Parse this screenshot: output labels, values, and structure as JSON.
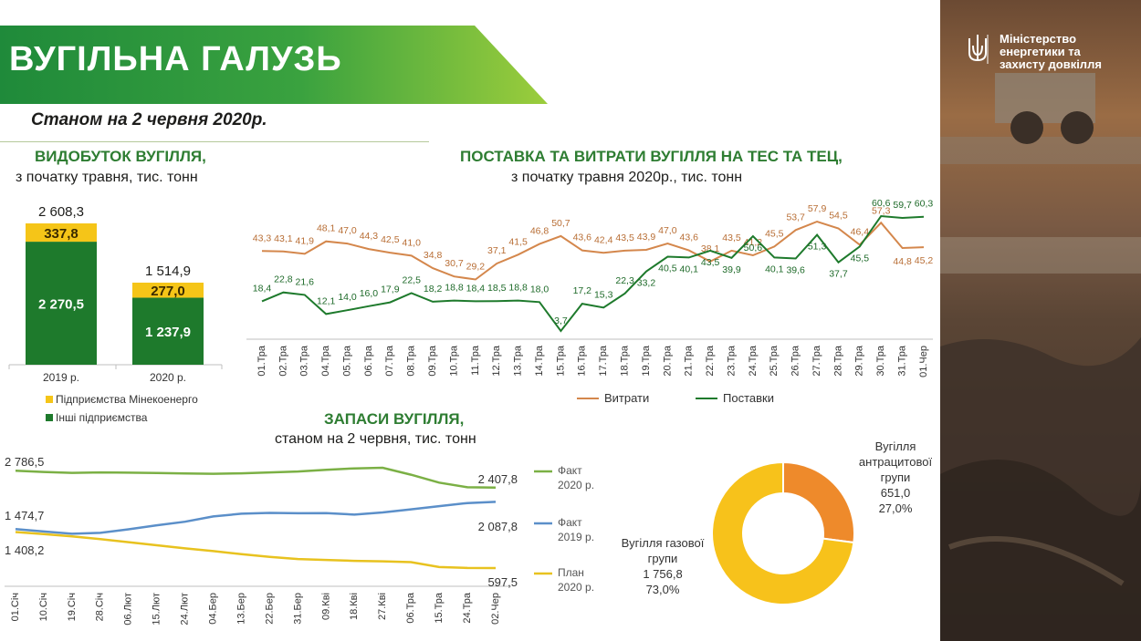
{
  "header": {
    "title": "ВУГІЛЬНА ГАЛУЗЬ",
    "date": "Станом на 2 червня 2020р."
  },
  "ministry": {
    "line1": "Міністерство",
    "line2": "енергетики та",
    "line3": "захисту довкілля"
  },
  "colors": {
    "green_dark": "#1e7a2c",
    "green_title": "#2e7d32",
    "yellow": "#f5c518",
    "orange": "#d4874c",
    "plan_yellow": "#e8c21f",
    "fact2020_green": "#7bb045",
    "fact2019_blue": "#5b8fc9",
    "donut_orange": "#ee8a2b",
    "donut_yellow": "#f7c21b"
  },
  "production": {
    "title": "ВИДОБУТОК ВУГІЛЛЯ,",
    "subtitle": "з початку травня, тис. тонн"
  },
  "supply": {
    "title": "ПОСТАВКА ТА ВИТРАТИ ВУГІЛЛЯ НА ТЕС ТА ТЕЦ,",
    "subtitle": "з початку травня 2020р., тис. тонн"
  },
  "stocks": {
    "title": "ЗАПАСИ ВУГІЛЛЯ,",
    "subtitle": "станом на 2 червня, тис. тонн"
  },
  "chart_data": [
    {
      "type": "bar",
      "stacked": true,
      "categories": [
        "2019 р.",
        "2020 р."
      ],
      "series": [
        {
          "name": "Інші підприємства",
          "values": [
            2270.5,
            1237.9
          ],
          "labels": [
            "2 270,5",
            "1 237,9"
          ]
        },
        {
          "name": "Підприємства Мінекоенерго",
          "values": [
            337.8,
            277.0
          ],
          "labels": [
            "337,8",
            "277,0"
          ]
        }
      ],
      "totals": [
        2608.3,
        1514.9
      ],
      "total_labels": [
        "2 608,3",
        "1 514,9"
      ],
      "legend_position": "bottom"
    },
    {
      "type": "line",
      "x": [
        "01.Тра",
        "02.Тра",
        "03.Тра",
        "04.Тра",
        "05.Тра",
        "06.Тра",
        "07.Тра",
        "08.Тра",
        "09.Тра",
        "10.Тра",
        "11.Тра",
        "12.Тра",
        "13.Тра",
        "14.Тра",
        "15.Тра",
        "16.Тра",
        "17.Тра",
        "18.Тра",
        "19.Тра",
        "20.Тра",
        "21.Тра",
        "22.Тра",
        "23.Тра",
        "24.Тра",
        "25.Тра",
        "26.Тра",
        "27.Тра",
        "28.Тра",
        "29.Тра",
        "30.Тра",
        "31.Тра",
        "01.Чер"
      ],
      "series": [
        {
          "name": "Витрати",
          "values": [
            43.3,
            43.1,
            41.9,
            48.1,
            47.0,
            44.3,
            42.5,
            41.0,
            34.8,
            30.7,
            29.2,
            37.1,
            41.5,
            46.8,
            50.7,
            43.6,
            42.4,
            43.5,
            43.9,
            47.0,
            43.6,
            38.1,
            43.5,
            41.2,
            45.5,
            53.7,
            57.9,
            54.5,
            46.4,
            57.3,
            44.8,
            45.2
          ],
          "labels": [
            "43,3",
            "43,1",
            "41,9",
            "48,1",
            "47,0",
            "44,3",
            "42,5",
            "41,0",
            "34,8",
            "30,7",
            "29,2",
            "37,1",
            "41,5",
            "46,8",
            "50,7",
            "43,6",
            "42,4",
            "43,5",
            "43,9",
            "47,0",
            "43,6",
            "38,1",
            "43,5",
            "41,2",
            "45,5",
            "53,7",
            "57,9",
            "54,5",
            "46,4",
            "57,3",
            "44,8",
            "45,2"
          ]
        },
        {
          "name": "Поставки",
          "values": [
            18.4,
            22.8,
            21.6,
            12.1,
            14.0,
            16.0,
            17.9,
            22.5,
            18.2,
            18.8,
            18.4,
            18.5,
            18.8,
            18.0,
            3.7,
            17.2,
            15.3,
            22.3,
            33.2,
            40.5,
            40.1,
            43.5,
            39.9,
            50.6,
            40.1,
            39.6,
            51.3,
            37.7,
            45.5,
            60.6,
            59.7,
            60.3
          ],
          "labels": [
            "18,4",
            "22,8",
            "21,6",
            "12,1",
            "14,0",
            "16,0",
            "17,9",
            "22,5",
            "18,2",
            "18,8",
            "18,4",
            "18,5",
            "18,8",
            "18,0",
            "3,7",
            "17,2",
            "15,3",
            "22,3",
            "33,2",
            "40,5",
            "40,1",
            "43,5",
            "39,9",
            "50,6",
            "40,1",
            "39,6",
            "51,3",
            "37,7",
            "45,5",
            "60,6",
            "59,7",
            "60,3"
          ]
        }
      ],
      "legend_position": "bottom"
    },
    {
      "type": "line",
      "x_ticks": [
        "01.Січ",
        "10.Січ",
        "19.Січ",
        "28.Січ",
        "06.Лют",
        "15.Лют",
        "24.Лют",
        "04.Бер",
        "13.Бер",
        "22.Бер",
        "31.Бер",
        "09.Кві",
        "18.Кві",
        "27.Кві",
        "06.Тра",
        "15.Тра",
        "24.Тра",
        "02.Чер"
      ],
      "series": [
        {
          "name_line1": "Факт",
          "name_line2": "2020 р.",
          "values": [
            2786.5,
            2760,
            2740,
            2750,
            2745,
            2735,
            2725,
            2720,
            2730,
            2750,
            2770,
            2810,
            2840,
            2855,
            2700,
            2520,
            2415,
            2407.8
          ],
          "start_label": "2 786,5",
          "end_label": "2 407,8"
        },
        {
          "name_line1": "Факт",
          "name_line2": "2019 р.",
          "values": [
            1474.7,
            1420,
            1370,
            1390,
            1470,
            1560,
            1640,
            1760,
            1820,
            1840,
            1830,
            1835,
            1800,
            1850,
            1920,
            1990,
            2060,
            2087.8
          ],
          "start_label": "1 474,7",
          "end_label": "2 087,8"
        },
        {
          "name_line1": "План",
          "name_line2": "2020 р.",
          "values": [
            1408.2,
            1360,
            1310,
            1250,
            1180,
            1110,
            1040,
            980,
            910,
            850,
            800,
            780,
            760,
            750,
            730,
            620,
            600,
            597.5
          ],
          "start_label": "1 408,2",
          "end_label": "597,5"
        }
      ]
    },
    {
      "type": "pie",
      "donut": true,
      "slices": [
        {
          "label_line1": "Вугілля",
          "label_line2": "антрацитової",
          "label_line3": "групи",
          "value": 651.0,
          "value_label": "651,0",
          "percent": "27,0%"
        },
        {
          "label_line1": "Вугілля газової",
          "label_line2": "групи",
          "value": 1756.8,
          "value_label": "1 756,8",
          "percent": "73,0%"
        }
      ]
    }
  ]
}
